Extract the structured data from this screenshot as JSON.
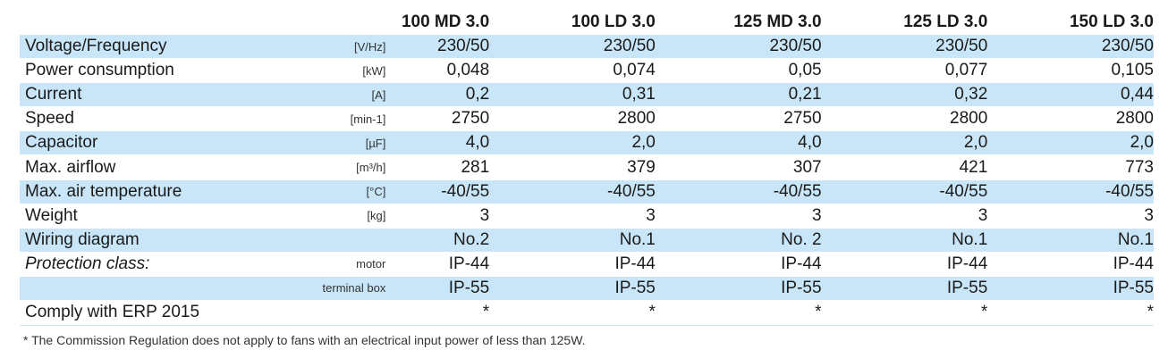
{
  "models": [
    "100 MD 3.0",
    "100 LD 3.0",
    "125 MD 3.0",
    "125 LD 3.0",
    "150 LD 3.0"
  ],
  "rows": [
    {
      "label": "Voltage/Frequency",
      "unit": "[V/Hz]",
      "values": [
        "230/50",
        "230/50",
        "230/50",
        "230/50",
        "230/50"
      ]
    },
    {
      "label": "Power consumption",
      "unit": "[kW]",
      "values": [
        "0,048",
        "0,074",
        "0,05",
        "0,077",
        "0,105"
      ]
    },
    {
      "label": "Current",
      "unit": "[A]",
      "values": [
        "0,2",
        "0,31",
        "0,21",
        "0,32",
        "0,44"
      ]
    },
    {
      "label": "Speed",
      "unit": "[min-1]",
      "values": [
        "2750",
        "2800",
        "2750",
        "2800",
        "2800"
      ]
    },
    {
      "label": "Capacitor",
      "unit": "[µF]",
      "values": [
        "4,0",
        "2,0",
        "4,0",
        "2,0",
        "2,0"
      ]
    },
    {
      "label": "Max. airflow",
      "unit": "[m³/h]",
      "values": [
        "281",
        "379",
        "307",
        "421",
        "773"
      ]
    },
    {
      "label": "Max. air temperature",
      "unit": "[°C]",
      "values": [
        "-40/55",
        "-40/55",
        "-40/55",
        "-40/55",
        "-40/55"
      ]
    },
    {
      "label": "Weight",
      "unit": "[kg]",
      "values": [
        "3",
        "3",
        "3",
        "3",
        "3"
      ]
    },
    {
      "label": "Wiring diagram",
      "unit": "",
      "values": [
        "No.2",
        "No.1",
        "No. 2",
        "No.1",
        "No.1"
      ]
    },
    {
      "label": "Protection class:",
      "unit": "motor",
      "values": [
        "IP-44",
        "IP-44",
        "IP-44",
        "IP-44",
        "IP-44"
      ]
    },
    {
      "label": "",
      "unit": "terminal box",
      "values": [
        "IP-55",
        "IP-55",
        "IP-55",
        "IP-55",
        "IP-55"
      ]
    },
    {
      "label": "Comply with ERP 2015",
      "unit": "",
      "values": [
        "*",
        "*",
        "*",
        "*",
        "*"
      ]
    }
  ],
  "footnote": "* The Commission Regulation does not apply to fans with an electrical input power of less than 125W."
}
